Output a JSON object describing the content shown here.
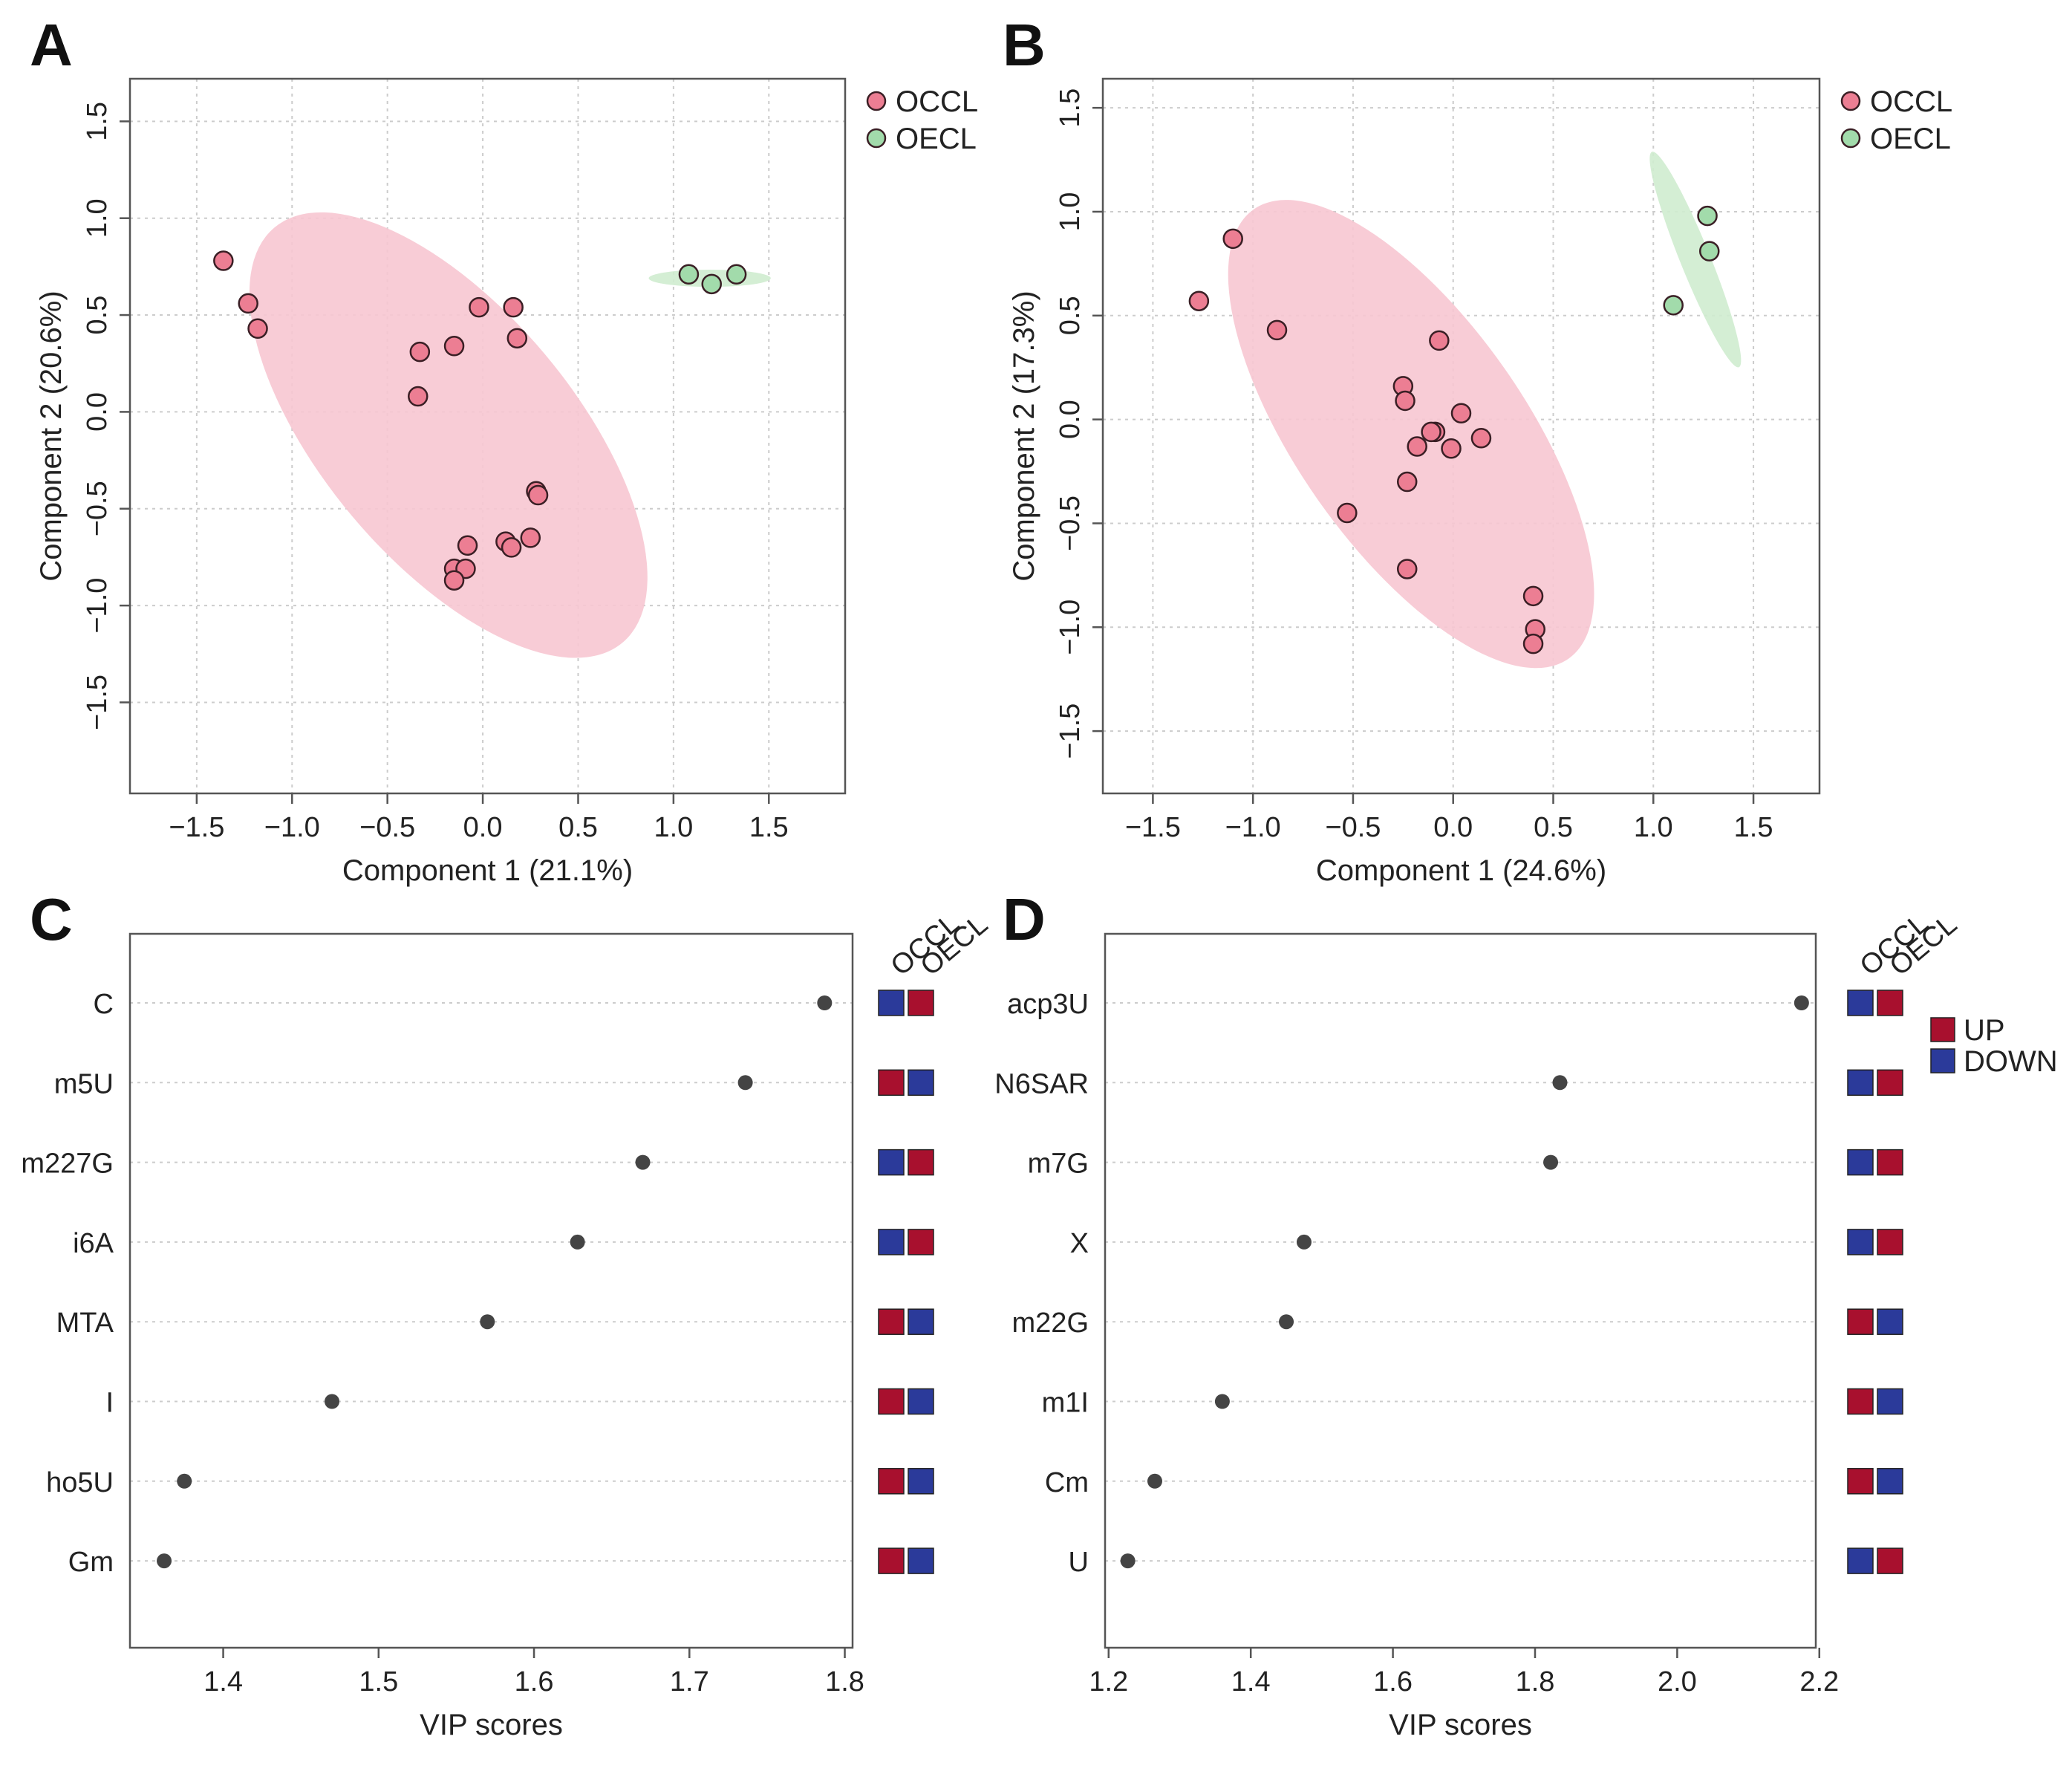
{
  "colors": {
    "occl_fill": "#ec7e93",
    "occl_ellipse": "#f7c7d2",
    "oecl_fill": "#a2dbab",
    "oecl_ellipse": "#cfeccf",
    "point_stroke": "#3a1f25",
    "vip_point": "#444444",
    "up": "#a8102e",
    "down": "#2b3a9a"
  },
  "panels": [
    "A",
    "B",
    "C",
    "D"
  ],
  "chart_data": [
    {
      "panel": "A",
      "type": "scatter",
      "xlabel": "Component 1 (21.1%)",
      "ylabel": "Component 2 (20.6%)",
      "xlim": [
        -1.85,
        1.9
      ],
      "ylim": [
        -1.97,
        1.72
      ],
      "xticks": [
        -1.5,
        -1.0,
        -0.5,
        0.0,
        0.5,
        1.0,
        1.5
      ],
      "xtick_labels": [
        "−1.5",
        "−1.0",
        "−0.5",
        "0.0",
        "0.5",
        "1.0",
        "1.5"
      ],
      "yticks": [
        -1.5,
        -1.0,
        -0.5,
        0.0,
        0.5,
        1.0,
        1.5
      ],
      "ytick_labels": [
        "−1.5",
        "−1.0",
        "−0.5",
        "0.0",
        "0.5",
        "1.0",
        "1.5"
      ],
      "legend": [
        "OCCL",
        "OECL"
      ],
      "legend_position": "top-right",
      "series": [
        {
          "name": "OCCL",
          "points": [
            [
              -1.36,
              0.78
            ],
            [
              -1.23,
              0.56
            ],
            [
              -1.18,
              0.43
            ],
            [
              -0.02,
              0.54
            ],
            [
              0.16,
              0.54
            ],
            [
              0.18,
              0.38
            ],
            [
              -0.15,
              0.34
            ],
            [
              -0.33,
              0.31
            ],
            [
              -0.34,
              0.08
            ],
            [
              0.28,
              -0.41
            ],
            [
              0.29,
              -0.43
            ],
            [
              0.25,
              -0.65
            ],
            [
              0.12,
              -0.67
            ],
            [
              0.15,
              -0.7
            ],
            [
              -0.08,
              -0.69
            ],
            [
              -0.15,
              -0.81
            ],
            [
              -0.09,
              -0.81
            ],
            [
              -0.15,
              -0.87
            ]
          ],
          "ellipse": {
            "cx": -0.18,
            "cy": -0.12,
            "rx": 1.42,
            "ry": 0.66,
            "angle_deg": -50
          }
        },
        {
          "name": "OECL",
          "points": [
            [
              1.08,
              0.71
            ],
            [
              1.2,
              0.66
            ],
            [
              1.33,
              0.71
            ]
          ],
          "ellipse": {
            "cx": 1.19,
            "cy": 0.69,
            "rx": 0.32,
            "ry": 0.045,
            "angle_deg": 0
          }
        }
      ]
    },
    {
      "panel": "B",
      "type": "scatter",
      "xlabel": "Component 1 (24.6%)",
      "ylabel": "Component 2 (17.3%)",
      "xlim": [
        -1.75,
        1.83
      ],
      "ylim": [
        -1.8,
        1.64
      ],
      "xticks": [
        -1.5,
        -1.0,
        -0.5,
        0.0,
        0.5,
        1.0,
        1.5
      ],
      "xtick_labels": [
        "−1.5",
        "−1.0",
        "−0.5",
        "0.0",
        "0.5",
        "1.0",
        "1.5"
      ],
      "yticks": [
        -1.5,
        -1.0,
        -0.5,
        0.0,
        0.5,
        1.0,
        1.5
      ],
      "ytick_labels": [
        "−1.5",
        "−1.0",
        "−0.5",
        "0.0",
        "0.5",
        "1.0",
        "1.5"
      ],
      "legend": [
        "OCCL",
        "OECL"
      ],
      "legend_position": "top-right",
      "series": [
        {
          "name": "OCCL",
          "points": [
            [
              -1.27,
              0.57
            ],
            [
              -1.1,
              0.87
            ],
            [
              -0.88,
              0.43
            ],
            [
              -0.07,
              0.38
            ],
            [
              -0.25,
              0.16
            ],
            [
              -0.24,
              0.09
            ],
            [
              0.04,
              0.03
            ],
            [
              0.14,
              -0.09
            ],
            [
              -0.09,
              -0.06
            ],
            [
              -0.11,
              -0.06
            ],
            [
              -0.18,
              -0.13
            ],
            [
              -0.01,
              -0.14
            ],
            [
              -0.23,
              -0.3
            ],
            [
              -0.53,
              -0.45
            ],
            [
              -0.23,
              -0.72
            ],
            [
              0.4,
              -0.85
            ],
            [
              0.41,
              -1.01
            ],
            [
              0.4,
              -1.08
            ]
          ],
          "ellipse": {
            "cx": -0.21,
            "cy": -0.07,
            "rx": 1.37,
            "ry": 0.57,
            "angle_deg": -55
          }
        },
        {
          "name": "OECL",
          "points": [
            [
              1.27,
              0.98
            ],
            [
              1.28,
              0.81
            ],
            [
              1.1,
              0.55
            ]
          ],
          "ellipse": {
            "cx": 1.21,
            "cy": 0.77,
            "rx": 0.58,
            "ry": 0.075,
            "angle_deg": -68
          }
        }
      ]
    },
    {
      "panel": "C",
      "type": "dot",
      "xlabel": "VIP scores",
      "xlim": [
        1.34,
        1.805
      ],
      "xticks": [
        1.4,
        1.5,
        1.6,
        1.7,
        1.8
      ],
      "xtick_labels": [
        "1.4",
        "1.5",
        "1.6",
        "1.7",
        "1.8"
      ],
      "categories": [
        "C",
        "m5U",
        "m227G",
        "i6A",
        "MTA",
        "I",
        "ho5U",
        "Gm"
      ],
      "values": [
        1.787,
        1.736,
        1.67,
        1.628,
        1.57,
        1.47,
        1.375,
        1.362
      ],
      "heatmap_columns": [
        "OCCL",
        "OECL"
      ],
      "heatmap": [
        [
          "DOWN",
          "UP"
        ],
        [
          "UP",
          "DOWN"
        ],
        [
          "DOWN",
          "UP"
        ],
        [
          "DOWN",
          "UP"
        ],
        [
          "UP",
          "DOWN"
        ],
        [
          "UP",
          "DOWN"
        ],
        [
          "UP",
          "DOWN"
        ],
        [
          "UP",
          "DOWN"
        ]
      ]
    },
    {
      "panel": "D",
      "type": "dot",
      "xlabel": "VIP scores",
      "xlim": [
        1.195,
        2.195
      ],
      "xticks": [
        1.2,
        1.4,
        1.6,
        1.8,
        2.0,
        2.2
      ],
      "xtick_labels": [
        "1.2",
        "1.4",
        "1.6",
        "1.8",
        "2.0",
        "2.2"
      ],
      "categories": [
        "acp3U",
        "N6SAR",
        "m7G",
        "X",
        "m22G",
        "m1I",
        "Cm",
        "U"
      ],
      "values": [
        2.175,
        1.835,
        1.822,
        1.475,
        1.45,
        1.36,
        1.265,
        1.227
      ],
      "heatmap_columns": [
        "OCCL",
        "OECL"
      ],
      "heatmap": [
        [
          "DOWN",
          "UP"
        ],
        [
          "DOWN",
          "UP"
        ],
        [
          "DOWN",
          "UP"
        ],
        [
          "DOWN",
          "UP"
        ],
        [
          "UP",
          "DOWN"
        ],
        [
          "UP",
          "DOWN"
        ],
        [
          "UP",
          "DOWN"
        ],
        [
          "DOWN",
          "UP"
        ]
      ],
      "legend": [
        "UP",
        "DOWN"
      ]
    }
  ]
}
